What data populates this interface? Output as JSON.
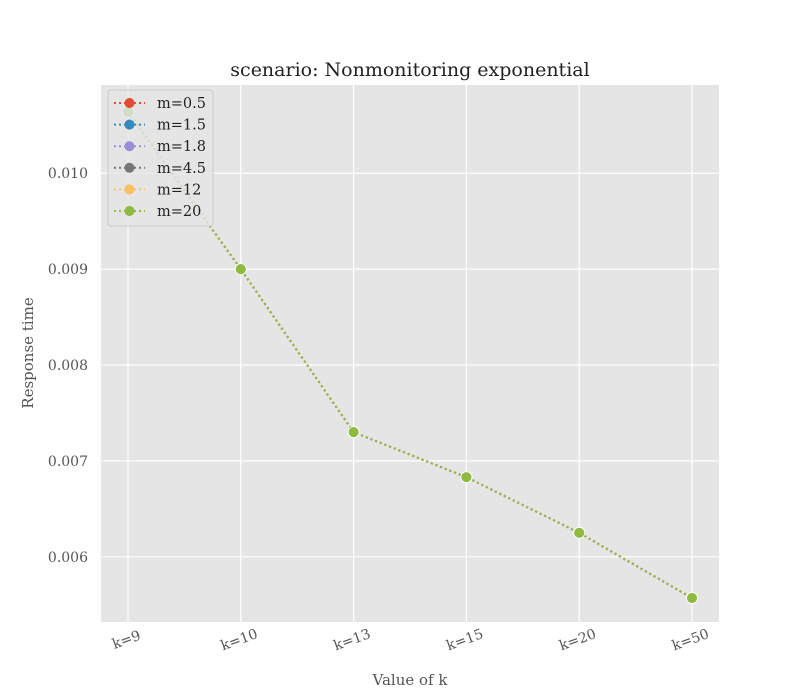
{
  "chart_data": {
    "type": "line",
    "title": "scenario: Nonmonitoring exponential",
    "xlabel": "Value of k",
    "ylabel": "Response time",
    "categories": [
      "k=9",
      "k=10",
      "k=13",
      "k=15",
      "k=20",
      "k=50"
    ],
    "ylim": [
      0.00532,
      0.01092
    ],
    "yticks": [
      0.006,
      0.007,
      0.008,
      0.009,
      0.01
    ],
    "ytick_labels": [
      "0.006",
      "0.007",
      "0.008",
      "0.009",
      "0.010"
    ],
    "grid": true,
    "legend_position": "top-left",
    "line_style": "dotted",
    "marker": "circle",
    "series": [
      {
        "name": "m=0.5",
        "color": "#E24A33",
        "values": [
          0.01064,
          0.009,
          0.0073,
          0.00683,
          0.00625,
          0.00557
        ]
      },
      {
        "name": "m=1.5",
        "color": "#348ABD",
        "values": [
          0.01064,
          0.009,
          0.0073,
          0.00683,
          0.00625,
          0.00557
        ]
      },
      {
        "name": "m=1.8",
        "color": "#988ED5",
        "values": [
          0.01064,
          0.009,
          0.0073,
          0.00683,
          0.00625,
          0.00557
        ]
      },
      {
        "name": "m=4.5",
        "color": "#777777",
        "values": [
          0.01064,
          0.009,
          0.0073,
          0.00683,
          0.00625,
          0.00557
        ]
      },
      {
        "name": "m=12",
        "color": "#FBC15E",
        "values": [
          0.01064,
          0.009,
          0.0073,
          0.00683,
          0.00625,
          0.00557
        ]
      },
      {
        "name": "m=20",
        "color": "#8EBA42",
        "values": [
          0.01064,
          0.009,
          0.0073,
          0.00683,
          0.00625,
          0.00557
        ]
      }
    ],
    "colors": {
      "plot_background": "#E5E5E5",
      "grid": "#FFFFFF",
      "legend_background": "#E5E5E5",
      "legend_border": "#CCCCCC"
    }
  }
}
